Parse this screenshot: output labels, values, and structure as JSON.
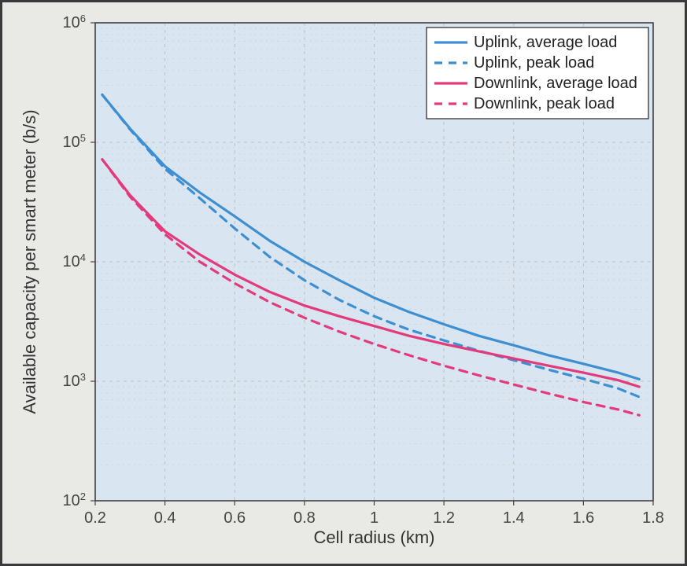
{
  "chart": {
    "type": "line-log",
    "xlabel": "Cell radius (km)",
    "ylabel": "Available capacity per smart meter (b/s)",
    "label_fontsize": 22,
    "tick_fontsize": 20,
    "xlim": [
      0.2,
      1.8
    ],
    "xtick_step": 0.2,
    "xticks": [
      "0.2",
      "0.4",
      "0.6",
      "0.8",
      "1",
      "1.2",
      "1.4",
      "1.6",
      "1.8"
    ],
    "ylim_exp": [
      2,
      6
    ],
    "yticks_exp": [
      2,
      3,
      4,
      5,
      6
    ],
    "ytick_labels": [
      "10^2",
      "10^3",
      "10^4",
      "10^5",
      "10^6"
    ],
    "background_color": "#d9e6f2",
    "frame_color": "#3a3a3a",
    "outer_bg": "#e9e9e6",
    "grid_major_color": "#bfbfbf",
    "grid_minor_color": "#cfcfcf",
    "axis_line_color": "#444444",
    "line_width": 3.2,
    "dash_pattern": "10,8",
    "legend": {
      "border_color": "#333333",
      "bg_color": "#ffffff",
      "fontsize": 20,
      "position": "top-right",
      "items": [
        {
          "label": "Uplink, average load",
          "color": "#3e8fd1",
          "dash": false
        },
        {
          "label": "Uplink, peak load",
          "color": "#3e8fd1",
          "dash": true
        },
        {
          "label": "Downlink, average load",
          "color": "#e23a7a",
          "dash": false
        },
        {
          "label": "Downlink, peak load",
          "color": "#e23a7a",
          "dash": true
        }
      ]
    },
    "series": [
      {
        "name": "uplink_avg",
        "color": "#3e8fd1",
        "dash": false,
        "x": [
          0.22,
          0.3,
          0.4,
          0.5,
          0.6,
          0.7,
          0.8,
          0.9,
          1.0,
          1.1,
          1.2,
          1.3,
          1.4,
          1.5,
          1.6,
          1.7,
          1.76
        ],
        "y": [
          250000,
          130000,
          63000,
          38000,
          24000,
          15000,
          10000,
          7000,
          5000,
          3800,
          3000,
          2400,
          2000,
          1650,
          1400,
          1180,
          1040
        ]
      },
      {
        "name": "uplink_peak",
        "color": "#3e8fd1",
        "dash": true,
        "x": [
          0.22,
          0.3,
          0.4,
          0.5,
          0.6,
          0.7,
          0.8,
          0.9,
          1.0,
          1.1,
          1.2,
          1.3,
          1.4,
          1.5,
          1.6,
          1.7,
          1.76
        ],
        "y": [
          250000,
          128000,
          60000,
          34000,
          19000,
          11000,
          7000,
          4800,
          3500,
          2700,
          2200,
          1800,
          1500,
          1250,
          1050,
          870,
          740
        ]
      },
      {
        "name": "downlink_avg",
        "color": "#e23a7a",
        "dash": false,
        "x": [
          0.22,
          0.3,
          0.4,
          0.5,
          0.6,
          0.7,
          0.8,
          0.9,
          1.0,
          1.1,
          1.2,
          1.3,
          1.4,
          1.5,
          1.6,
          1.7,
          1.76
        ],
        "y": [
          72000,
          36000,
          18000,
          11500,
          7800,
          5600,
          4300,
          3500,
          2900,
          2400,
          2050,
          1780,
          1550,
          1350,
          1180,
          1020,
          900
        ]
      },
      {
        "name": "downlink_peak",
        "color": "#e23a7a",
        "dash": true,
        "x": [
          0.22,
          0.3,
          0.4,
          0.5,
          0.6,
          0.7,
          0.8,
          0.9,
          1.0,
          1.1,
          1.2,
          1.3,
          1.4,
          1.5,
          1.6,
          1.7,
          1.76
        ],
        "y": [
          72000,
          35000,
          17000,
          10000,
          6600,
          4600,
          3400,
          2600,
          2050,
          1650,
          1350,
          1120,
          940,
          790,
          670,
          580,
          520
        ]
      }
    ]
  }
}
